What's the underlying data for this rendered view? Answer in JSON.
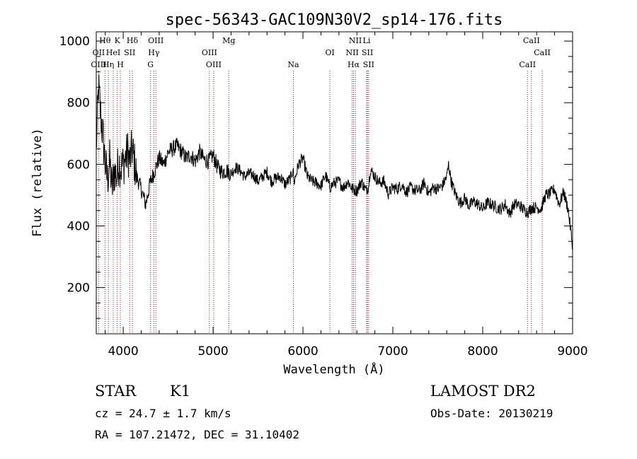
{
  "chart_data": {
    "type": "line",
    "title": "spec-56343-GAC109N30V2_sp14-176.fits",
    "xlabel": "Wavelength (Å)",
    "ylabel": "Flux (relative)",
    "xlim": [
      3700,
      9000
    ],
    "ylim": [
      50,
      1030
    ],
    "x_ticks": [
      4000,
      5000,
      6000,
      7000,
      8000,
      9000
    ],
    "y_ticks": [
      200,
      400,
      600,
      800,
      1000
    ],
    "grid": false,
    "series": [
      {
        "x": [
          3700,
          3725,
          3750,
          3775,
          3800,
          3825,
          3850,
          3875,
          3900,
          3925,
          3950,
          3975,
          4000,
          4025,
          4050,
          4075,
          4100,
          4150,
          4200,
          4250,
          4300,
          4350,
          4400,
          4450,
          4500,
          4550,
          4600,
          4650,
          4700,
          4750,
          4800,
          4850,
          4900,
          4950,
          5000,
          5050,
          5100,
          5150,
          5200,
          5250,
          5300,
          5350,
          5400,
          5450,
          5500,
          5550,
          5600,
          5650,
          5700,
          5750,
          5800,
          5850,
          5870,
          5890,
          5900,
          5950,
          6000,
          6050,
          6100,
          6150,
          6200,
          6250,
          6300,
          6350,
          6400,
          6450,
          6500,
          6550,
          6600,
          6650,
          6700,
          6730,
          6750,
          6800,
          6850,
          6900,
          6950,
          7000,
          7050,
          7100,
          7150,
          7200,
          7250,
          7300,
          7350,
          7400,
          7450,
          7500,
          7550,
          7600,
          7620,
          7650,
          7700,
          7750,
          7800,
          7850,
          7900,
          7950,
          8000,
          8050,
          8100,
          8150,
          8200,
          8250,
          8300,
          8350,
          8400,
          8450,
          8500,
          8550,
          8600,
          8650,
          8700,
          8750,
          8800,
          8850,
          8900,
          8950,
          9000
        ],
        "values": [
          650,
          850,
          760,
          690,
          600,
          550,
          610,
          520,
          580,
          560,
          610,
          590,
          600,
          620,
          640,
          610,
          650,
          560,
          520,
          470,
          540,
          580,
          620,
          600,
          640,
          650,
          660,
          640,
          620,
          630,
          610,
          640,
          615,
          610,
          630,
          590,
          575,
          580,
          570,
          590,
          580,
          560,
          570,
          565,
          545,
          560,
          575,
          545,
          555,
          560,
          535,
          550,
          560,
          590,
          540,
          600,
          620,
          560,
          545,
          540,
          530,
          565,
          525,
          540,
          545,
          525,
          545,
          520,
          515,
          545,
          515,
          530,
          585,
          560,
          540,
          545,
          505,
          525,
          520,
          535,
          510,
          525,
          515,
          515,
          540,
          505,
          525,
          520,
          530,
          560,
          600,
          545,
          500,
          475,
          490,
          465,
          480,
          470,
          455,
          475,
          470,
          460,
          455,
          470,
          440,
          470,
          470,
          455,
          445,
          460,
          460,
          455,
          500,
          505,
          520,
          470,
          510,
          455,
          335
        ]
      }
    ],
    "annotations": {
      "spectral_lines": [
        {
          "label": "Hθ",
          "x": 3797,
          "row": 1
        },
        {
          "label": "K",
          "x": 3934,
          "row": 1
        },
        {
          "label": "Hδ",
          "x": 4102,
          "row": 1
        },
        {
          "label": "OIII",
          "x": 4363,
          "row": 1
        },
        {
          "label": "Mg",
          "x": 5175,
          "row": 1
        },
        {
          "label": "NII",
          "x": 6583,
          "row": 1
        },
        {
          "label": "Li",
          "x": 6708,
          "row": 1
        },
        {
          "label": "CaII",
          "x": 8542,
          "row": 1
        },
        {
          "label": "OII",
          "x": 3727,
          "row": 2
        },
        {
          "label": "HeI",
          "x": 3889,
          "row": 2
        },
        {
          "label": "SII",
          "x": 4072,
          "row": 2
        },
        {
          "label": "Hγ",
          "x": 4341,
          "row": 2
        },
        {
          "label": "OIII",
          "x": 4959,
          "row": 2
        },
        {
          "label": "OI",
          "x": 6300,
          "row": 2
        },
        {
          "label": "NII",
          "x": 6548,
          "row": 2
        },
        {
          "label": "SII",
          "x": 6717,
          "row": 2
        },
        {
          "label": "CaII",
          "x": 8662,
          "row": 2
        },
        {
          "label": "OIII",
          "x": 3727,
          "row": 3
        },
        {
          "label": "Hη",
          "x": 3835,
          "row": 3
        },
        {
          "label": "H",
          "x": 3968,
          "row": 3
        },
        {
          "label": "G",
          "x": 4304,
          "row": 3
        },
        {
          "label": "OIII",
          "x": 5007,
          "row": 3
        },
        {
          "label": "Na",
          "x": 5893,
          "row": 3
        },
        {
          "label": "Hα",
          "x": 6563,
          "row": 3
        },
        {
          "label": "SII",
          "x": 6731,
          "row": 3
        },
        {
          "label": "CaII",
          "x": 8498,
          "row": 3
        }
      ],
      "line_color": "#8b1a1a"
    }
  },
  "info": {
    "object_type": "STAR",
    "subclass": "K1",
    "survey": "LAMOST DR2",
    "cz": "cz = 24.7 ± 1.7 km/s",
    "obs_date": "Obs-Date: 20130219",
    "coords": "RA = 107.21472, DEC =  31.10402"
  }
}
